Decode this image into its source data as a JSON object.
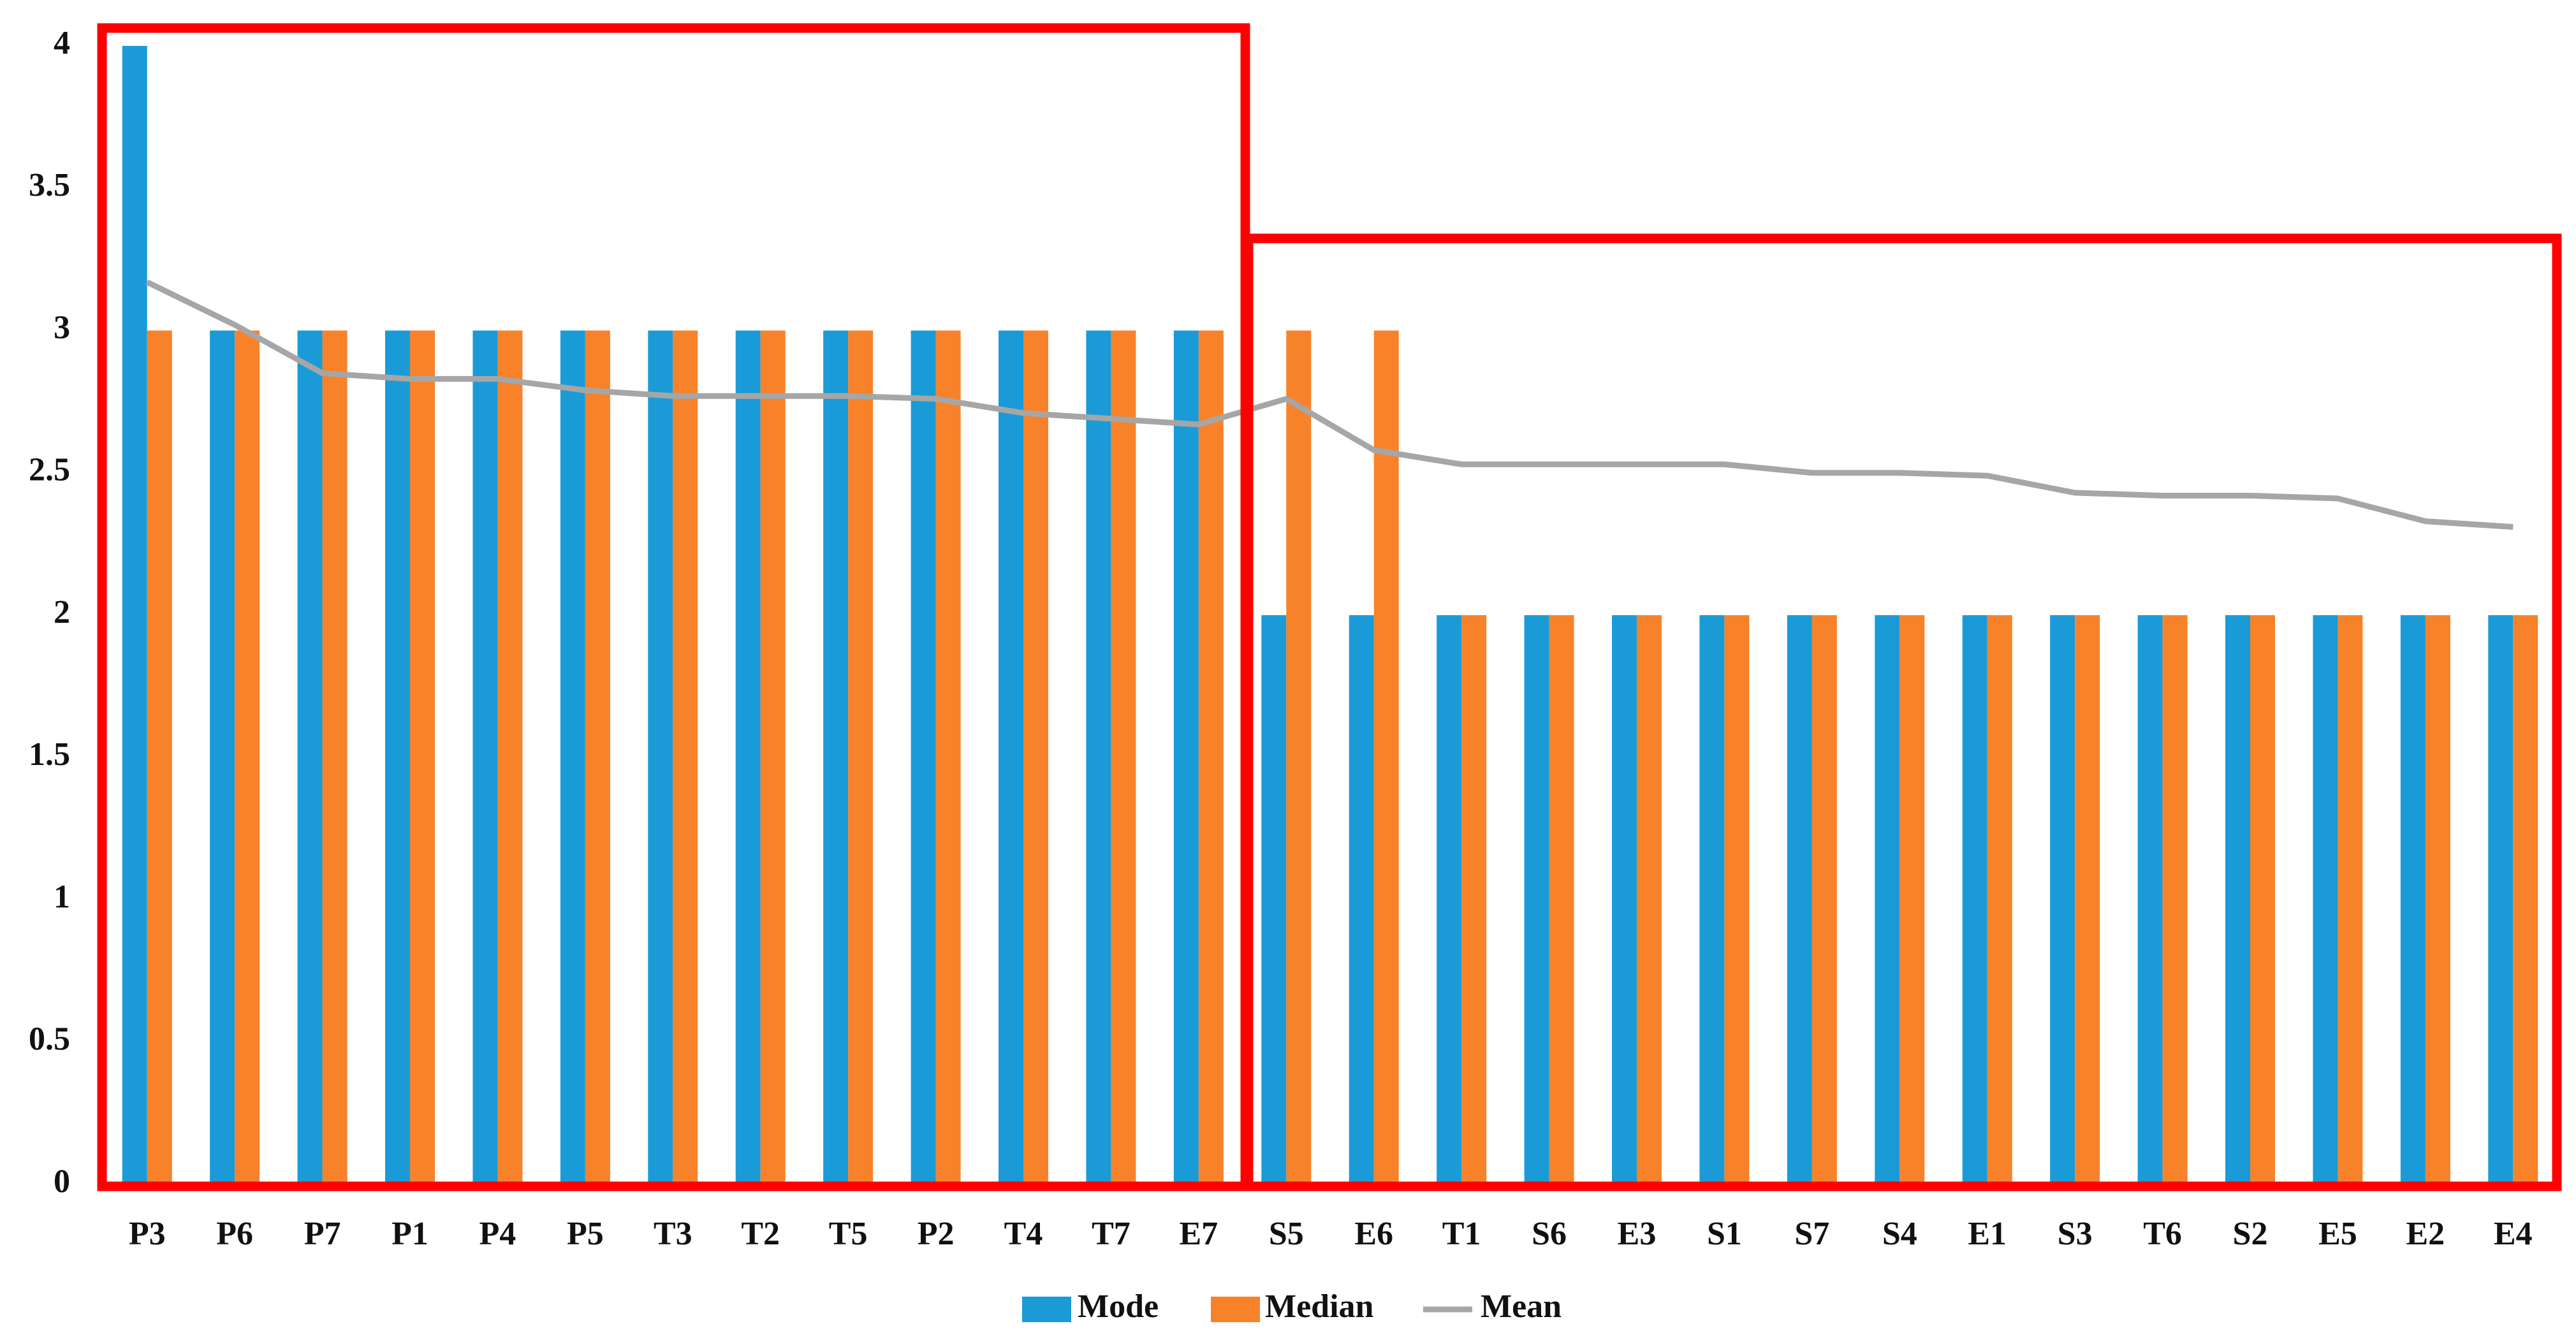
{
  "chart_data": {
    "type": "bar",
    "categories": [
      "P3",
      "P6",
      "P7",
      "P1",
      "P4",
      "P5",
      "T3",
      "T2",
      "T5",
      "P2",
      "T4",
      "T7",
      "E7",
      "S5",
      "E6",
      "T1",
      "S6",
      "E3",
      "S1",
      "S7",
      "S4",
      "E1",
      "S3",
      "T6",
      "S2",
      "E5",
      "E2",
      "E4"
    ],
    "series": [
      {
        "name": "Mode",
        "color": "#1a9bd7",
        "type": "bar",
        "values": [
          4,
          3,
          3,
          3,
          3,
          3,
          3,
          3,
          3,
          3,
          3,
          3,
          3,
          2,
          2,
          2,
          2,
          2,
          2,
          2,
          2,
          2,
          2,
          2,
          2,
          2,
          2,
          2
        ]
      },
      {
        "name": "Median",
        "color": "#f7822a",
        "type": "bar",
        "values": [
          3,
          3,
          3,
          3,
          3,
          3,
          3,
          3,
          3,
          3,
          3,
          3,
          3,
          3,
          3,
          2,
          2,
          2,
          2,
          2,
          2,
          2,
          2,
          2,
          2,
          2,
          2,
          2
        ]
      },
      {
        "name": "Mean",
        "color": "#a6a6a6",
        "type": "line",
        "values": [
          3.17,
          3.02,
          2.85,
          2.83,
          2.83,
          2.79,
          2.77,
          2.77,
          2.77,
          2.76,
          2.71,
          2.69,
          2.67,
          2.76,
          2.58,
          2.53,
          2.53,
          2.53,
          2.53,
          2.5,
          2.5,
          2.49,
          2.43,
          2.42,
          2.42,
          2.41,
          2.33,
          2.31
        ]
      }
    ],
    "ylim": [
      0,
      4
    ],
    "yticks": [
      0,
      0.5,
      1,
      1.5,
      2,
      2.5,
      3,
      3.5,
      4
    ],
    "grid": false
  }
}
